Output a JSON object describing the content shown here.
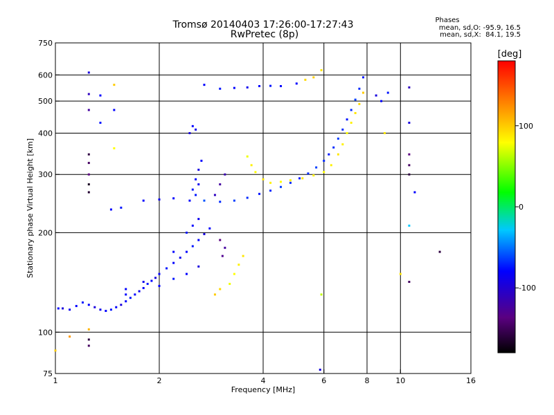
{
  "chart_data": {
    "type": "scatter",
    "title": "Tromsø 20140403 17:26:00-17:27:43",
    "subtitle": "RwPretec (8p)",
    "xlabel": "Frequency [MHz]",
    "ylabel": "Stationary phase Virtual Height [km]",
    "x_scale": "log",
    "y_scale": "log",
    "xlim": [
      1,
      16
    ],
    "ylim": [
      75,
      750
    ],
    "x_ticks": [
      1,
      2,
      4,
      6,
      8,
      10,
      16
    ],
    "x_tick_labels": [
      "1",
      "2",
      "4",
      "6",
      "8",
      "10",
      "16"
    ],
    "x_gridlines": [
      2,
      4,
      6,
      8,
      10
    ],
    "y_ticks": [
      75,
      100,
      200,
      300,
      400,
      500,
      600,
      750
    ],
    "y_tick_labels": [
      "75",
      "100",
      "200",
      "300",
      "400",
      "500",
      "600",
      "750"
    ],
    "y_gridlines": [
      100,
      200,
      300,
      400,
      500,
      600
    ],
    "grid": true,
    "phases_box": {
      "title": "Phases",
      "line_o": "mean, sd,O: -95.9, 16.5",
      "line_x": "mean, sd,X:  84.1, 19.5"
    },
    "colorbar": {
      "label": "[deg]",
      "range": [
        -180,
        180
      ],
      "ticks": [
        100,
        0,
        -100
      ],
      "tick_labels": [
        "100",
        "0",
        "-100"
      ],
      "colormap": "rainbow (black-purple-blue-cyan-green-yellow-red)"
    },
    "series": [
      {
        "points": [
          [
            1.02,
            118,
            -100
          ],
          [
            1.05,
            118,
            -110
          ],
          [
            1.1,
            117,
            -105
          ],
          [
            1.15,
            120,
            -100
          ],
          [
            1.2,
            123,
            -95
          ],
          [
            1.25,
            121,
            -100
          ],
          [
            1.3,
            119,
            -110
          ],
          [
            1.35,
            117,
            -105
          ],
          [
            1.4,
            116,
            -100
          ],
          [
            1.45,
            117,
            -95
          ],
          [
            1.5,
            119,
            -100
          ],
          [
            1.55,
            121,
            -110
          ],
          [
            1.6,
            124,
            -100
          ],
          [
            1.65,
            127,
            -95
          ],
          [
            1.7,
            130,
            -100
          ],
          [
            1.75,
            133,
            -105
          ],
          [
            1.8,
            136,
            -100
          ],
          [
            1.85,
            140,
            -95
          ],
          [
            1.9,
            143,
            -100
          ],
          [
            1.95,
            146,
            -110
          ],
          [
            2.0,
            150,
            -100
          ],
          [
            2.1,
            156,
            -95
          ],
          [
            2.2,
            162,
            -100
          ],
          [
            2.3,
            168,
            -105
          ],
          [
            2.4,
            175,
            -100
          ],
          [
            2.5,
            182,
            -95
          ],
          [
            2.6,
            190,
            -100
          ],
          [
            2.7,
            198,
            -110
          ],
          [
            2.8,
            206,
            -100
          ],
          [
            1.6,
            135,
            -100
          ],
          [
            1.8,
            142,
            -105
          ],
          [
            2.0,
            138,
            -100
          ],
          [
            2.2,
            145,
            -95
          ],
          [
            2.4,
            150,
            -100
          ],
          [
            2.6,
            158,
            -110
          ],
          [
            2.2,
            175,
            -100
          ],
          [
            2.4,
            200,
            -95
          ],
          [
            2.5,
            210,
            -100
          ],
          [
            2.6,
            220,
            -105
          ]
        ]
      },
      {
        "points": [
          [
            2.45,
            250,
            -100
          ],
          [
            2.5,
            270,
            -95
          ],
          [
            2.55,
            290,
            -100
          ],
          [
            2.6,
            310,
            -110
          ],
          [
            2.65,
            330,
            -100
          ],
          [
            2.55,
            260,
            -95
          ],
          [
            2.6,
            280,
            -105
          ],
          [
            2.45,
            400,
            -110
          ],
          [
            2.5,
            420,
            -100
          ],
          [
            2.55,
            410,
            -105
          ],
          [
            2.9,
            260,
            -120
          ],
          [
            3.0,
            280,
            -130
          ],
          [
            3.1,
            300,
            -125
          ],
          [
            3.0,
            190,
            -140
          ],
          [
            3.1,
            180,
            -130
          ],
          [
            3.05,
            170,
            -135
          ],
          [
            1.45,
            235,
            -100
          ],
          [
            1.55,
            238,
            -95
          ],
          [
            1.8,
            250,
            -100
          ],
          [
            2.0,
            252,
            -105
          ],
          [
            2.2,
            254,
            -100
          ]
        ]
      },
      {
        "points": [
          [
            2.7,
            250,
            -80
          ],
          [
            3.0,
            248,
            -90
          ],
          [
            3.3,
            250,
            -85
          ],
          [
            3.6,
            255,
            -90
          ],
          [
            3.9,
            262,
            -95
          ],
          [
            4.2,
            268,
            -90
          ],
          [
            4.5,
            275,
            -85
          ],
          [
            4.8,
            283,
            -90
          ],
          [
            5.1,
            292,
            -95
          ],
          [
            5.4,
            302,
            -90
          ],
          [
            5.7,
            315,
            -85
          ],
          [
            6.0,
            330,
            -90
          ],
          [
            6.2,
            345,
            -95
          ],
          [
            6.4,
            362,
            -90
          ],
          [
            6.6,
            385,
            -85
          ],
          [
            6.8,
            410,
            -90
          ],
          [
            7.0,
            440,
            -95
          ],
          [
            7.2,
            470,
            -90
          ],
          [
            7.4,
            505,
            -85
          ],
          [
            7.6,
            545,
            -90
          ],
          [
            7.8,
            590,
            -95
          ]
        ]
      },
      {
        "points": [
          [
            3.6,
            340,
            75
          ],
          [
            3.7,
            320,
            85
          ],
          [
            3.8,
            305,
            80
          ],
          [
            4.0,
            290,
            90
          ],
          [
            4.2,
            283,
            85
          ],
          [
            4.5,
            285,
            80
          ],
          [
            4.8,
            288,
            85
          ],
          [
            5.2,
            292,
            90
          ],
          [
            5.6,
            298,
            85
          ],
          [
            6.0,
            305,
            80
          ],
          [
            6.3,
            320,
            85
          ],
          [
            6.6,
            345,
            90
          ],
          [
            6.8,
            370,
            85
          ],
          [
            7.0,
            400,
            80
          ],
          [
            7.2,
            430,
            85
          ],
          [
            7.4,
            460,
            90
          ],
          [
            7.6,
            490,
            95
          ],
          [
            7.8,
            530,
            100
          ],
          [
            3.2,
            140,
            75
          ],
          [
            3.3,
            150,
            80
          ],
          [
            3.4,
            160,
            85
          ],
          [
            3.5,
            170,
            90
          ],
          [
            3.0,
            135,
            95
          ],
          [
            2.9,
            130,
            100
          ]
        ]
      },
      {
        "points": [
          [
            2.7,
            560,
            -100
          ],
          [
            3.0,
            545,
            -95
          ],
          [
            3.3,
            548,
            -100
          ],
          [
            3.6,
            550,
            -105
          ],
          [
            3.9,
            555,
            -100
          ],
          [
            4.2,
            556,
            -95
          ],
          [
            4.5,
            555,
            -100
          ],
          [
            5.0,
            565,
            -100
          ],
          [
            5.3,
            580,
            95
          ],
          [
            5.6,
            590,
            100
          ],
          [
            5.9,
            620,
            90
          ]
        ]
      },
      {
        "points": [
          [
            1.25,
            610,
            -110
          ],
          [
            1.25,
            525,
            -120
          ],
          [
            1.25,
            470,
            -130
          ],
          [
            1.25,
            345,
            -160
          ],
          [
            1.25,
            325,
            -150
          ],
          [
            1.25,
            300,
            -140
          ],
          [
            1.25,
            280,
            -170
          ],
          [
            1.25,
            265,
            -165
          ],
          [
            1.25,
            95,
            -160
          ],
          [
            1.25,
            91,
            -150
          ],
          [
            1.35,
            520,
            -100
          ],
          [
            1.35,
            430,
            -95
          ],
          [
            1.48,
            560,
            100
          ],
          [
            1.48,
            470,
            -100
          ],
          [
            1.48,
            360,
            80
          ],
          [
            1.6,
            130,
            -100
          ],
          [
            10.6,
            550,
            -120
          ],
          [
            10.6,
            430,
            -110
          ],
          [
            10.6,
            345,
            -140
          ],
          [
            10.6,
            320,
            -150
          ],
          [
            10.6,
            300,
            -160
          ],
          [
            10.6,
            210,
            -50
          ],
          [
            10.6,
            142,
            -150
          ],
          [
            11.0,
            265,
            -100
          ],
          [
            13.0,
            175,
            -160
          ],
          [
            10.0,
            150,
            90
          ],
          [
            5.9,
            130,
            60
          ],
          [
            5.85,
            77,
            -110
          ],
          [
            1.0,
            88,
            100
          ],
          [
            1.1,
            97,
            120
          ],
          [
            1.25,
            102,
            110
          ],
          [
            8.5,
            520,
            -110
          ],
          [
            8.8,
            500,
            -100
          ],
          [
            9.2,
            530,
            -95
          ],
          [
            9.0,
            400,
            90
          ]
        ]
      }
    ]
  }
}
